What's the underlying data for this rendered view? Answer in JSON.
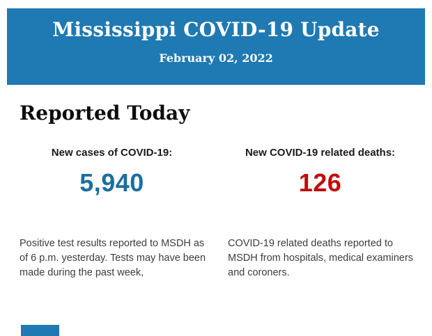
{
  "header": {
    "title": "Mississippi COVID-19 Update",
    "date": "February 02, 2022",
    "background_color": "#1f79b3",
    "text_color": "#ffffff"
  },
  "main": {
    "section_title": "Reported Today",
    "stats": [
      {
        "label": "New cases of COVID-19:",
        "value": "5,940",
        "value_color": "#1b6fa0",
        "description": "Positive test results reported to MSDH as of 6 p.m. yesterday. Tests may have been made during the past week,"
      },
      {
        "label": "New COVID-19 related deaths:",
        "value": "126",
        "value_color": "#c00d0d",
        "description": "COVID-19 related deaths reported to MSDH from hospitals, medical examiners and coroners."
      }
    ]
  },
  "footer": {
    "accent_color": "#1f79b3"
  }
}
